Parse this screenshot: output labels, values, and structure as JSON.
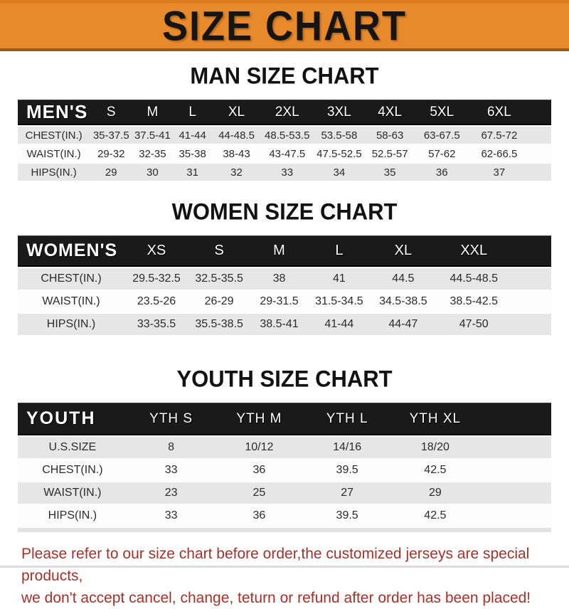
{
  "banner": {
    "title": "SIZE CHART",
    "bg_color": "#E8892C",
    "text_color": "#151515"
  },
  "chart_data": [
    {
      "type": "table",
      "title": "MAN SIZE CHART",
      "header_label": "MEN'S",
      "columns": [
        "S",
        "M",
        "L",
        "XL",
        "2XL",
        "3XL",
        "4XL",
        "5XL",
        "6XL"
      ],
      "rows": [
        {
          "label": "CHEST(IN.)",
          "values": [
            "35-37.5",
            "37.5-41",
            "41-44",
            "44-48.5",
            "48.5-53.5",
            "53.5-58",
            "58-63",
            "63-67.5",
            "67.5-72"
          ]
        },
        {
          "label": "WAIST(IN.)",
          "values": [
            "29-32",
            "32-35",
            "35-38",
            "38-43",
            "43-47.5",
            "47.5-52.5",
            "52.5-57",
            "57-62",
            "62-66.5"
          ]
        },
        {
          "label": "HIPS(IN.)",
          "values": [
            "29",
            "30",
            "31",
            "32",
            "33",
            "34",
            "35",
            "36",
            "37"
          ]
        }
      ]
    },
    {
      "type": "table",
      "title": "WOMEN SIZE CHART",
      "header_label": "WOMEN'S",
      "columns": [
        "XS",
        "S",
        "M",
        "L",
        "XL",
        "XXL"
      ],
      "rows": [
        {
          "label": "CHEST(IN.)",
          "values": [
            "29.5-32.5",
            "32.5-35.5",
            "38",
            "41",
            "44.5",
            "44.5-48.5"
          ]
        },
        {
          "label": "WAIST(IN.)",
          "values": [
            "23.5-26",
            "26-29",
            "29-31.5",
            "31.5-34.5",
            "34.5-38.5",
            "38.5-42.5"
          ]
        },
        {
          "label": "HIPS(IN.)",
          "values": [
            "33-35.5",
            "35.5-38.5",
            "38.5-41",
            "41-44",
            "44-47",
            "47-50"
          ]
        }
      ]
    },
    {
      "type": "table",
      "title": "YOUTH SIZE CHART",
      "header_label": "YOUTH",
      "columns": [
        "YTH S",
        "YTH M",
        "YTH L",
        "YTH XL"
      ],
      "rows": [
        {
          "label": "U.S.SIZE",
          "values": [
            "8",
            "10/12",
            "14/16",
            "18/20"
          ]
        },
        {
          "label": "CHEST(IN.)",
          "values": [
            "33",
            "36",
            "39.5",
            "42.5"
          ]
        },
        {
          "label": "WAIST(IN.)",
          "values": [
            "23",
            "25",
            "27",
            "29"
          ]
        },
        {
          "label": "HIPS(IN.)",
          "values": [
            "33",
            "36",
            "39.5",
            "42.5"
          ]
        }
      ]
    }
  ],
  "footer": {
    "lines": [
      "Please refer to our size chart before order,the customized jerseys are special products,",
      "we don't accept cancel, change, teturn or refund after order has been placed!"
    ],
    "text_color": "#A5322A"
  },
  "colors": {
    "band_bg": "#1A1A1A",
    "band_text": "#FFFFFF",
    "row_alt_bg": "#E6E6E6",
    "row_bg": "#FDFDFD",
    "banner_border_bottom": "#9C5A14"
  }
}
